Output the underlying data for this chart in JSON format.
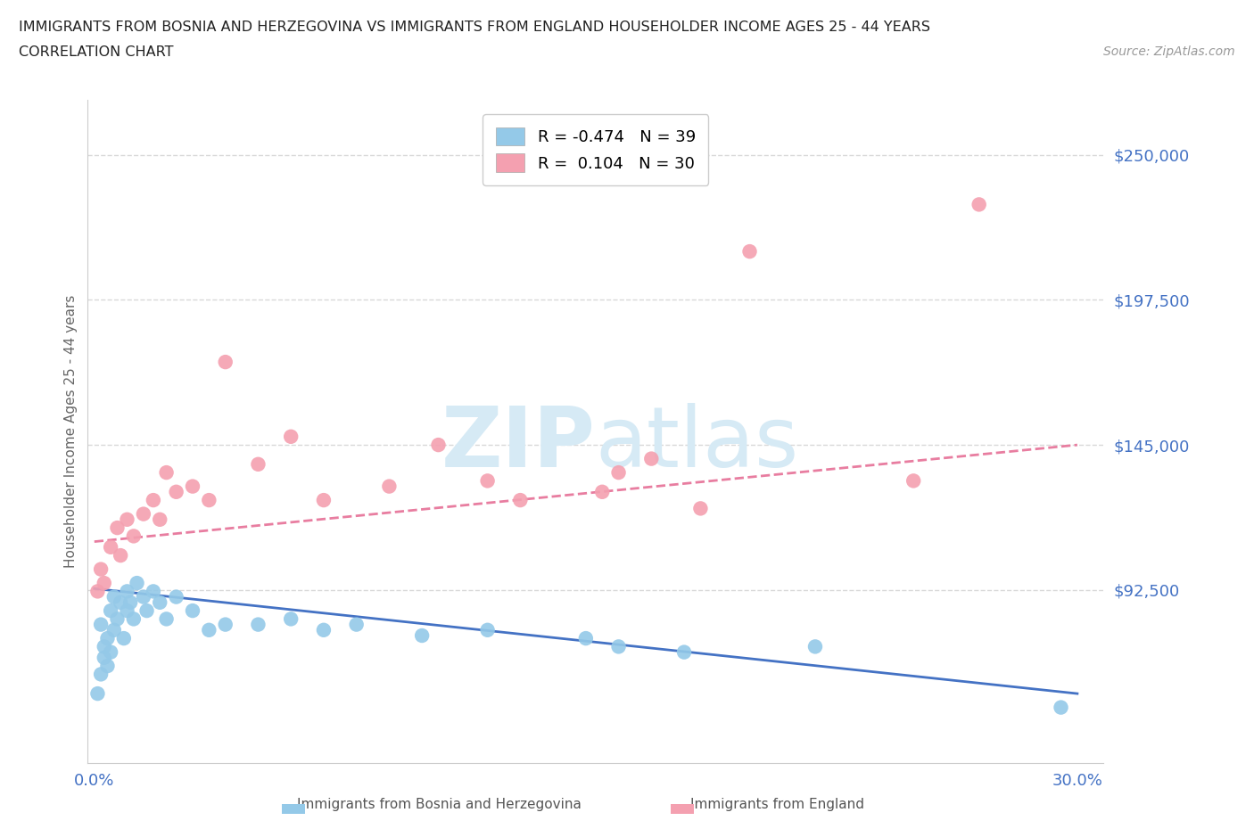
{
  "title_line1": "IMMIGRANTS FROM BOSNIA AND HERZEGOVINA VS IMMIGRANTS FROM ENGLAND HOUSEHOLDER INCOME AGES 25 - 44 YEARS",
  "title_line2": "CORRELATION CHART",
  "source_text": "Source: ZipAtlas.com",
  "ylabel": "Householder Income Ages 25 - 44 years",
  "xlim": [
    -0.002,
    0.308
  ],
  "ylim": [
    30000,
    270000
  ],
  "yticks": [
    92500,
    145000,
    197500,
    250000
  ],
  "ytick_labels": [
    "$92,500",
    "$145,000",
    "$197,500",
    "$250,000"
  ],
  "xticks": [
    0.0,
    0.05,
    0.1,
    0.15,
    0.2,
    0.25,
    0.3
  ],
  "xtick_labels": [
    "0.0%",
    "",
    "",
    "",
    "",
    "",
    "30.0%"
  ],
  "bosnia_R": -0.474,
  "bosnia_N": 39,
  "england_R": 0.104,
  "england_N": 30,
  "bosnia_color": "#94C9E8",
  "england_color": "#F4A0B0",
  "bosnia_line_color": "#4472C4",
  "england_line_color": "#E87DA0",
  "watermark_color": "#D6EAF5",
  "grid_color": "#D8D8D8",
  "axis_label_color": "#4472C4",
  "tick_color": "#4472C4",
  "bosnia_x": [
    0.001,
    0.002,
    0.002,
    0.003,
    0.003,
    0.004,
    0.004,
    0.005,
    0.005,
    0.006,
    0.006,
    0.007,
    0.008,
    0.009,
    0.01,
    0.01,
    0.011,
    0.012,
    0.013,
    0.015,
    0.016,
    0.018,
    0.02,
    0.022,
    0.025,
    0.03,
    0.035,
    0.04,
    0.05,
    0.06,
    0.07,
    0.08,
    0.1,
    0.12,
    0.15,
    0.16,
    0.18,
    0.22,
    0.295
  ],
  "bosnia_y": [
    55000,
    62000,
    80000,
    68000,
    72000,
    65000,
    75000,
    70000,
    85000,
    78000,
    90000,
    82000,
    88000,
    75000,
    85000,
    92000,
    88000,
    82000,
    95000,
    90000,
    85000,
    92000,
    88000,
    82000,
    90000,
    85000,
    78000,
    80000,
    80000,
    82000,
    78000,
    80000,
    76000,
    78000,
    75000,
    72000,
    70000,
    72000,
    50000
  ],
  "england_x": [
    0.001,
    0.002,
    0.003,
    0.005,
    0.007,
    0.008,
    0.01,
    0.012,
    0.015,
    0.018,
    0.02,
    0.022,
    0.025,
    0.03,
    0.035,
    0.04,
    0.05,
    0.06,
    0.07,
    0.09,
    0.105,
    0.12,
    0.13,
    0.155,
    0.16,
    0.17,
    0.185,
    0.2,
    0.25,
    0.27
  ],
  "england_y": [
    92000,
    100000,
    95000,
    108000,
    115000,
    105000,
    118000,
    112000,
    120000,
    125000,
    118000,
    135000,
    128000,
    130000,
    125000,
    175000,
    138000,
    148000,
    125000,
    130000,
    145000,
    132000,
    125000,
    128000,
    135000,
    140000,
    122000,
    215000,
    132000,
    232000
  ],
  "bos_trend_x": [
    0.0,
    0.3
  ],
  "bos_trend_y": [
    93000,
    55000
  ],
  "eng_trend_x": [
    0.0,
    0.3
  ],
  "eng_trend_y": [
    110000,
    145000
  ]
}
